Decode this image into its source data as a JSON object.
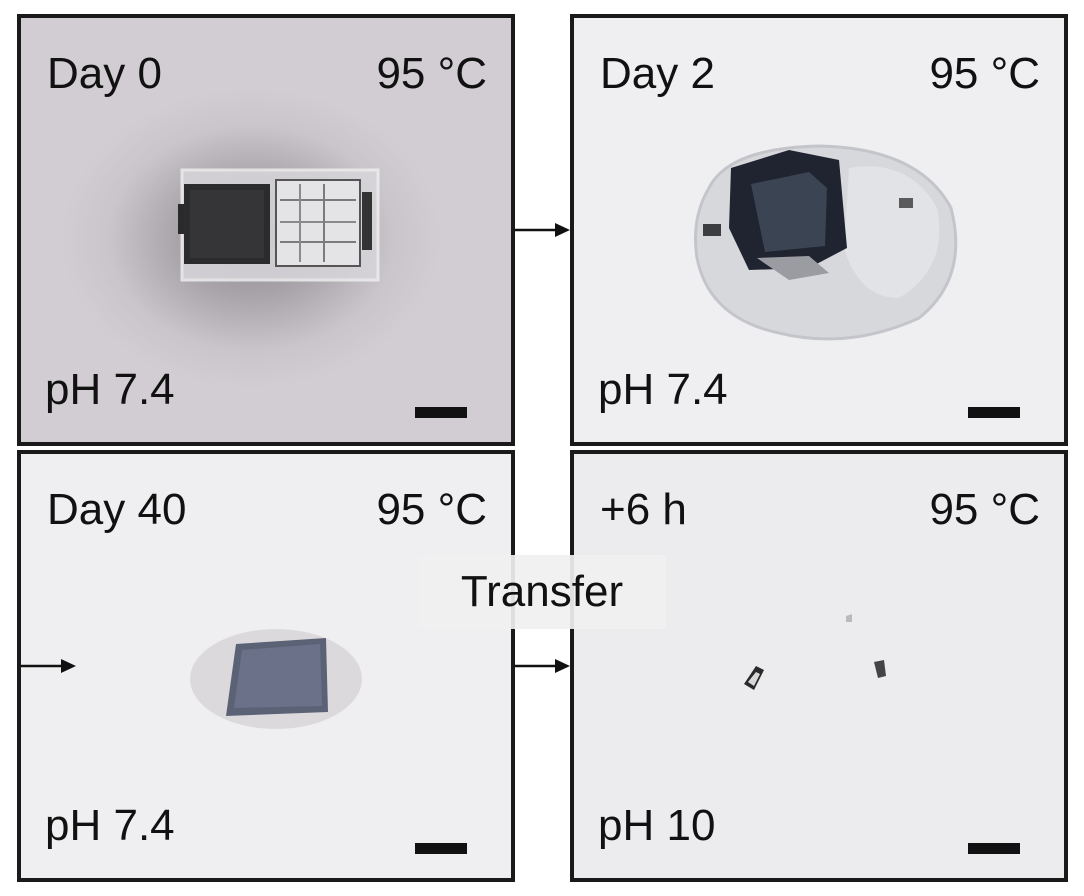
{
  "panels": [
    {
      "time": "Day 0",
      "temperature": "95 °C",
      "ph": "pH 7.4"
    },
    {
      "time": "Day 2",
      "temperature": "95 °C",
      "ph": "pH 7.4"
    },
    {
      "time": "Day 40",
      "temperature": "95 °C",
      "ph": "pH 7.4"
    },
    {
      "time": "+6 h",
      "temperature": "95 °C",
      "ph": "pH 10"
    }
  ],
  "transfer_label": "Transfer",
  "colors": {
    "border": "#1a1a1a",
    "text": "#111111"
  }
}
